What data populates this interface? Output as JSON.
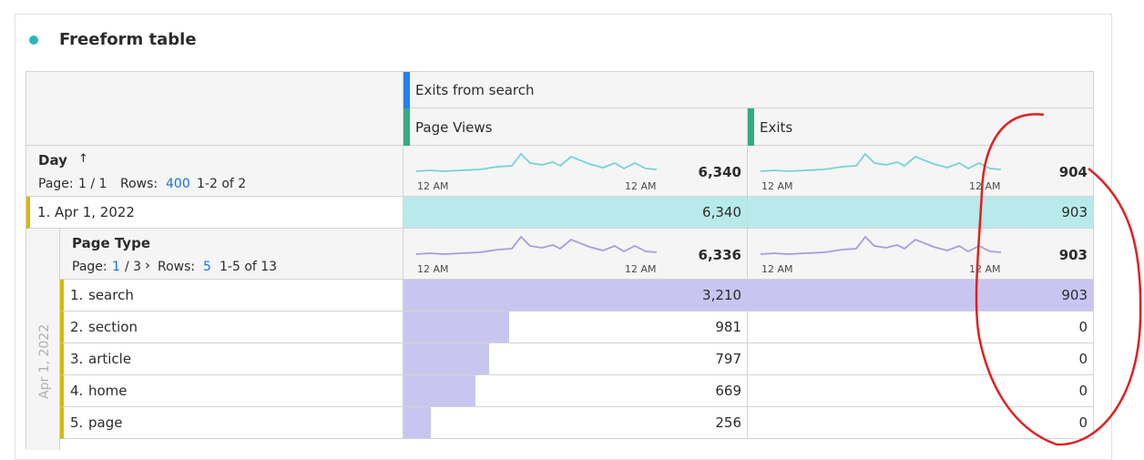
{
  "panel": {
    "title": "Freeform table"
  },
  "table": {
    "segment": "Exits from search",
    "columns": [
      "Page Views",
      "Exits"
    ],
    "axis_labels": [
      "12 AM",
      "12 AM"
    ],
    "day": {
      "name": "Day",
      "page_label": "Page:",
      "page": "1 / 1",
      "rows_label": "Rows:",
      "rows": "400",
      "range": "1-2 of 2",
      "totals": [
        "6,340",
        "904"
      ]
    },
    "day_rows": [
      {
        "number": "1.",
        "label": "Apr 1, 2022",
        "values": [
          "6,340",
          "903"
        ]
      }
    ],
    "page_type": {
      "name": "Page Type",
      "page_label": "Page:",
      "page": "1",
      "page_of": "/ 3",
      "rows_label": "Rows:",
      "rows": "5",
      "range": "1-5 of 13",
      "totals": [
        "6,336",
        "903"
      ]
    },
    "rows": [
      {
        "number": "1.",
        "label": "search",
        "values": [
          3210,
          903
        ],
        "value_labels": [
          "3,210",
          "903"
        ]
      },
      {
        "number": "2.",
        "label": "section",
        "values": [
          981,
          0
        ],
        "value_labels": [
          "981",
          "0"
        ]
      },
      {
        "number": "3.",
        "label": "article",
        "values": [
          797,
          0
        ],
        "value_labels": [
          "797",
          "0"
        ]
      },
      {
        "number": "4.",
        "label": "home",
        "values": [
          669,
          0
        ],
        "value_labels": [
          "669",
          "0"
        ]
      },
      {
        "number": "5.",
        "label": "page",
        "values": [
          256,
          0
        ],
        "value_labels": [
          "256",
          "0"
        ]
      }
    ]
  }
}
